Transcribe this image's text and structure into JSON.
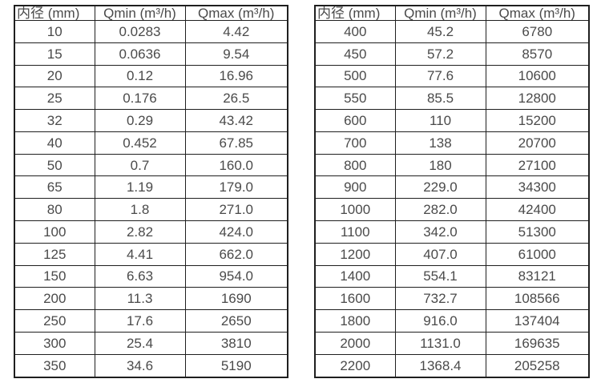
{
  "page": {
    "background": "#ffffff",
    "border_color": "#1f1f1f",
    "text_color": "#4a4a4a"
  },
  "left_table": {
    "headers": {
      "diameter": "内径 (mm)",
      "qmin": "Qmin (m³/h)",
      "qmax": "Qmax (m³/h)"
    },
    "rows": [
      {
        "diameter": "10",
        "qmin": "0.0283",
        "qmax": "4.42"
      },
      {
        "diameter": "15",
        "qmin": "0.0636",
        "qmax": "9.54"
      },
      {
        "diameter": "20",
        "qmin": "0.12",
        "qmax": "16.96"
      },
      {
        "diameter": "25",
        "qmin": "0.176",
        "qmax": "26.5"
      },
      {
        "diameter": "32",
        "qmin": "0.29",
        "qmax": "43.42"
      },
      {
        "diameter": "40",
        "qmin": "0.452",
        "qmax": "67.85"
      },
      {
        "diameter": "50",
        "qmin": "0.7",
        "qmax": "160.0"
      },
      {
        "diameter": "65",
        "qmin": "1.19",
        "qmax": "179.0"
      },
      {
        "diameter": "80",
        "qmin": "1.8",
        "qmax": "271.0"
      },
      {
        "diameter": "100",
        "qmin": "2.82",
        "qmax": "424.0"
      },
      {
        "diameter": "125",
        "qmin": "4.41",
        "qmax": "662.0"
      },
      {
        "diameter": "150",
        "qmin": "6.63",
        "qmax": "954.0"
      },
      {
        "diameter": "200",
        "qmin": "11.3",
        "qmax": "1690"
      },
      {
        "diameter": "250",
        "qmin": "17.6",
        "qmax": "2650"
      },
      {
        "diameter": "300",
        "qmin": "25.4",
        "qmax": "3810"
      },
      {
        "diameter": "350",
        "qmin": "34.6",
        "qmax": "5190"
      }
    ]
  },
  "right_table": {
    "headers": {
      "diameter": "内径 (mm)",
      "qmin": "Qmin (m³/h)",
      "qmax": "Qmax (m³/h)"
    },
    "rows": [
      {
        "diameter": "400",
        "qmin": "45.2",
        "qmax": "6780"
      },
      {
        "diameter": "450",
        "qmin": "57.2",
        "qmax": "8570"
      },
      {
        "diameter": "500",
        "qmin": "77.6",
        "qmax": "10600"
      },
      {
        "diameter": "550",
        "qmin": "85.5",
        "qmax": "12800"
      },
      {
        "diameter": "600",
        "qmin": "110",
        "qmax": "15200"
      },
      {
        "diameter": "700",
        "qmin": "138",
        "qmax": "20700"
      },
      {
        "diameter": "800",
        "qmin": "180",
        "qmax": "27100"
      },
      {
        "diameter": "900",
        "qmin": "229.0",
        "qmax": "34300"
      },
      {
        "diameter": "1000",
        "qmin": "282.0",
        "qmax": "42400"
      },
      {
        "diameter": "1100",
        "qmin": "342.0",
        "qmax": "51300"
      },
      {
        "diameter": "1200",
        "qmin": "407.0",
        "qmax": "61000"
      },
      {
        "diameter": "1400",
        "qmin": "554.1",
        "qmax": "83121"
      },
      {
        "diameter": "1600",
        "qmin": "732.7",
        "qmax": "108566"
      },
      {
        "diameter": "1800",
        "qmin": "916.0",
        "qmax": "137404"
      },
      {
        "diameter": "2000",
        "qmin": "1131.0",
        "qmax": "169635"
      },
      {
        "diameter": "2200",
        "qmin": "1368.4",
        "qmax": "205258"
      }
    ]
  }
}
